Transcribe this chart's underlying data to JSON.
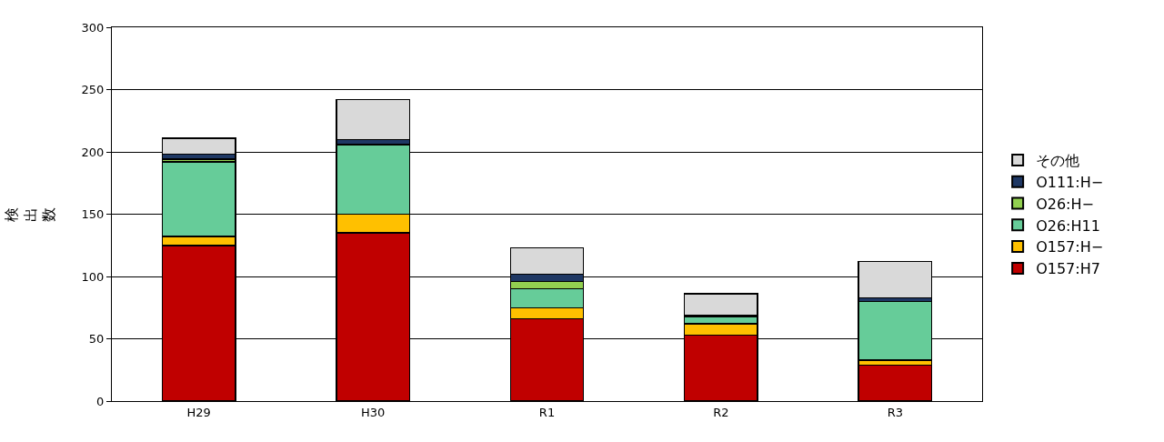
{
  "chart_data": {
    "type": "bar",
    "stacked": true,
    "ylabel": "検出数",
    "categories": [
      "H29",
      "H30",
      "R1",
      "R2",
      "R3"
    ],
    "series": [
      {
        "name": "O157:H7",
        "color": "#c00000",
        "values": [
          125,
          135,
          66,
          53,
          29
        ]
      },
      {
        "name": "O157:H−",
        "color": "#ffc000",
        "values": [
          7,
          15,
          9,
          9,
          4
        ]
      },
      {
        "name": "O26:H11",
        "color": "#66cc99",
        "values": [
          60,
          56,
          15,
          6,
          47
        ]
      },
      {
        "name": "O26:H−",
        "color": "#92d050",
        "values": [
          2,
          0,
          6,
          0,
          0
        ]
      },
      {
        "name": "O111:H−",
        "color": "#1f3864",
        "values": [
          4,
          4,
          6,
          1,
          3
        ]
      },
      {
        "name": "その他",
        "color": "#d9d9d9",
        "values": [
          13,
          32,
          21,
          17,
          29
        ]
      }
    ],
    "ylim": [
      0,
      300
    ],
    "yticks": [
      0,
      50,
      100,
      150,
      200,
      250,
      300
    ],
    "grid": "y",
    "legend": "right"
  }
}
